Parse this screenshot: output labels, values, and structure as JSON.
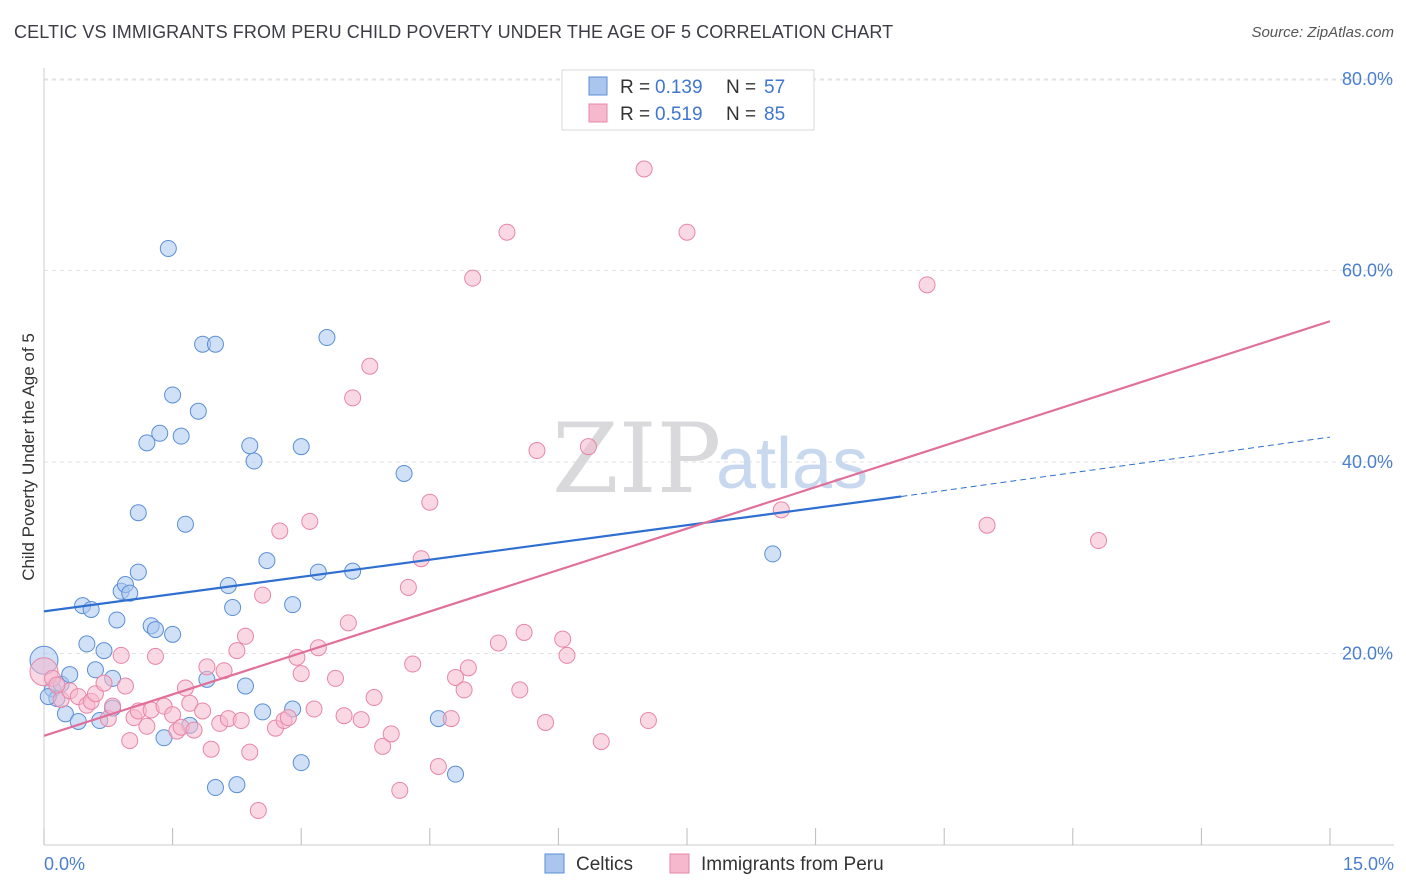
{
  "title": "CELTIC VS IMMIGRANTS FROM PERU CHILD POVERTY UNDER THE AGE OF 5 CORRELATION CHART",
  "source": "Source: ZipAtlas.com",
  "watermark": {
    "zip": "ZIP",
    "atlas": "atlas"
  },
  "colors": {
    "celtic_fill": "#aac6ee",
    "celtic_stroke": "#5b8fd6",
    "celtic_line": "#2f6fd0",
    "peru_fill": "#f5b8cc",
    "peru_stroke": "#e886a8",
    "peru_line": "#e0709a",
    "grid": "#e2e2e2",
    "axis_label": "#4a7fcf"
  },
  "stats_box": {
    "rows": [
      {
        "series": "Celtics",
        "r_label": "R =",
        "r_value": "0.139",
        "n_label": "N =",
        "n_value": "57"
      },
      {
        "series": "Immigrants from Peru",
        "r_label": "R =",
        "r_value": "0.519",
        "n_label": "N =",
        "n_value": "85"
      }
    ]
  },
  "chart_data": {
    "type": "scatter",
    "title": "CELTIC VS IMMIGRANTS FROM PERU CHILD POVERTY UNDER THE AGE OF 5 CORRELATION CHART",
    "xlabel": "",
    "ylabel": "Child Poverty Under the Age of 5",
    "xlim": [
      0,
      15
    ],
    "ylim": [
      0,
      80
    ],
    "x_tick_labels": [
      "0.0%",
      "15.0%"
    ],
    "y_ticks": [
      20,
      40,
      60,
      80
    ],
    "y_tick_labels": [
      "20.0%",
      "40.0%",
      "60.0%",
      "80.0%"
    ],
    "legend": [
      "Celtics",
      "Immigrants from Peru"
    ],
    "series": [
      {
        "name": "Celtics",
        "trend": {
          "x0": 0,
          "y0": 24.4,
          "x1": 10.0,
          "y1": 36.4,
          "dash_x1": 15.0,
          "dash_y1": 42.6
        },
        "points": [
          [
            0.0,
            19.3,
            14
          ],
          [
            0.1,
            16.3,
            8
          ],
          [
            0.15,
            15.3,
            8
          ],
          [
            0.2,
            16.8,
            8
          ],
          [
            0.25,
            13.7,
            8
          ],
          [
            0.3,
            17.8,
            8
          ],
          [
            0.4,
            12.9,
            8
          ],
          [
            0.45,
            25.0,
            8
          ],
          [
            0.5,
            21.0,
            8
          ],
          [
            0.55,
            24.6,
            8
          ],
          [
            0.6,
            18.3,
            8
          ],
          [
            0.65,
            13.0,
            8
          ],
          [
            0.7,
            20.3,
            8
          ],
          [
            0.8,
            14.3,
            8
          ],
          [
            0.8,
            17.4,
            8
          ],
          [
            0.85,
            23.5,
            8
          ],
          [
            0.9,
            26.5,
            8
          ],
          [
            0.95,
            27.2,
            8
          ],
          [
            1.0,
            26.3,
            8
          ],
          [
            1.1,
            28.5,
            8
          ],
          [
            1.1,
            34.7,
            8
          ],
          [
            1.2,
            42.0,
            8
          ],
          [
            1.25,
            22.9,
            8
          ],
          [
            1.3,
            22.5,
            8
          ],
          [
            1.35,
            43.0,
            8
          ],
          [
            1.4,
            11.2,
            8
          ],
          [
            1.45,
            62.3,
            8
          ],
          [
            1.5,
            47.0,
            8
          ],
          [
            1.5,
            22.0,
            8
          ],
          [
            1.6,
            42.7,
            8
          ],
          [
            1.65,
            33.5,
            8
          ],
          [
            1.7,
            12.5,
            8
          ],
          [
            1.8,
            45.3,
            8
          ],
          [
            1.85,
            52.3,
            8
          ],
          [
            1.9,
            17.3,
            8
          ],
          [
            2.0,
            6.0,
            8
          ],
          [
            2.0,
            52.3,
            8
          ],
          [
            2.15,
            27.1,
            8
          ],
          [
            2.2,
            24.8,
            8
          ],
          [
            2.25,
            6.3,
            8
          ],
          [
            2.35,
            16.6,
            8
          ],
          [
            2.4,
            41.7,
            8
          ],
          [
            2.45,
            40.1,
            8
          ],
          [
            2.55,
            13.9,
            8
          ],
          [
            2.6,
            29.7,
            8
          ],
          [
            2.9,
            14.2,
            8
          ],
          [
            2.9,
            25.1,
            8
          ],
          [
            3.0,
            8.6,
            8
          ],
          [
            3.0,
            41.6,
            8
          ],
          [
            3.2,
            28.5,
            8
          ],
          [
            3.3,
            53.0,
            8
          ],
          [
            3.6,
            28.6,
            8
          ],
          [
            4.2,
            38.8,
            8
          ],
          [
            4.6,
            13.2,
            8
          ],
          [
            4.8,
            7.4,
            8
          ],
          [
            8.5,
            30.4,
            8
          ],
          [
            0.05,
            15.5,
            8
          ]
        ]
      },
      {
        "name": "Immigrants from Peru",
        "trend": {
          "x0": 0,
          "y0": 11.4,
          "x1": 15.0,
          "y1": 54.7
        },
        "points": [
          [
            0.0,
            18.1,
            14
          ],
          [
            0.1,
            17.4,
            8
          ],
          [
            0.2,
            15.2,
            8
          ],
          [
            0.3,
            16.1,
            8
          ],
          [
            0.4,
            15.5,
            8
          ],
          [
            0.5,
            14.6,
            8
          ],
          [
            0.55,
            15.0,
            8
          ],
          [
            0.6,
            15.8,
            8
          ],
          [
            0.7,
            16.9,
            8
          ],
          [
            0.75,
            13.2,
            8
          ],
          [
            0.8,
            14.5,
            8
          ],
          [
            0.9,
            19.8,
            8
          ],
          [
            0.95,
            16.6,
            8
          ],
          [
            1.0,
            10.9,
            8
          ],
          [
            1.05,
            13.3,
            8
          ],
          [
            1.1,
            14.0,
            8
          ],
          [
            1.2,
            12.4,
            8
          ],
          [
            1.25,
            14.1,
            8
          ],
          [
            1.3,
            19.7,
            8
          ],
          [
            1.4,
            14.5,
            8
          ],
          [
            1.5,
            13.6,
            8
          ],
          [
            1.55,
            11.9,
            8
          ],
          [
            1.6,
            12.3,
            8
          ],
          [
            1.65,
            16.4,
            8
          ],
          [
            1.7,
            14.8,
            8
          ],
          [
            1.75,
            12.0,
            8
          ],
          [
            1.85,
            14.0,
            8
          ],
          [
            1.9,
            18.6,
            8
          ],
          [
            1.95,
            10.0,
            8
          ],
          [
            2.05,
            12.7,
            8
          ],
          [
            2.1,
            18.2,
            8
          ],
          [
            2.15,
            13.2,
            8
          ],
          [
            2.25,
            20.3,
            8
          ],
          [
            2.3,
            13.0,
            8
          ],
          [
            2.35,
            21.8,
            8
          ],
          [
            2.4,
            9.7,
            8
          ],
          [
            2.5,
            3.6,
            8
          ],
          [
            2.55,
            26.1,
            8
          ],
          [
            2.7,
            12.2,
            8
          ],
          [
            2.75,
            32.8,
            8
          ],
          [
            2.8,
            13.0,
            8
          ],
          [
            2.85,
            13.3,
            8
          ],
          [
            2.95,
            19.6,
            8
          ],
          [
            3.0,
            17.9,
            8
          ],
          [
            3.1,
            33.8,
            8
          ],
          [
            3.15,
            14.2,
            8
          ],
          [
            3.2,
            20.6,
            8
          ],
          [
            3.4,
            17.4,
            8
          ],
          [
            3.5,
            13.5,
            8
          ],
          [
            3.55,
            23.2,
            8
          ],
          [
            3.6,
            46.7,
            8
          ],
          [
            3.7,
            13.1,
            8
          ],
          [
            3.8,
            50.0,
            8
          ],
          [
            3.85,
            15.4,
            8
          ],
          [
            3.95,
            10.3,
            8
          ],
          [
            4.05,
            11.6,
            8
          ],
          [
            4.15,
            5.7,
            8
          ],
          [
            4.25,
            26.9,
            8
          ],
          [
            4.3,
            18.9,
            8
          ],
          [
            4.4,
            29.9,
            8
          ],
          [
            4.5,
            35.8,
            8
          ],
          [
            4.6,
            8.2,
            8
          ],
          [
            4.75,
            13.2,
            8
          ],
          [
            4.8,
            17.5,
            8
          ],
          [
            4.9,
            16.2,
            8
          ],
          [
            4.95,
            18.5,
            8
          ],
          [
            5.0,
            59.2,
            8
          ],
          [
            5.3,
            21.1,
            8
          ],
          [
            5.4,
            64.0,
            8
          ],
          [
            5.55,
            16.2,
            8
          ],
          [
            5.6,
            22.2,
            8
          ],
          [
            5.75,
            41.2,
            8
          ],
          [
            5.85,
            12.8,
            8
          ],
          [
            6.05,
            21.5,
            8
          ],
          [
            6.1,
            19.8,
            8
          ],
          [
            6.35,
            41.6,
            8
          ],
          [
            6.5,
            10.8,
            8
          ],
          [
            7.0,
            70.6,
            8
          ],
          [
            7.05,
            13.0,
            8
          ],
          [
            7.5,
            64.0,
            8
          ],
          [
            8.6,
            35.0,
            8
          ],
          [
            10.3,
            58.5,
            8
          ],
          [
            11.0,
            33.4,
            8
          ],
          [
            12.3,
            31.8,
            8
          ],
          [
            0.15,
            16.7,
            8
          ]
        ]
      }
    ]
  }
}
